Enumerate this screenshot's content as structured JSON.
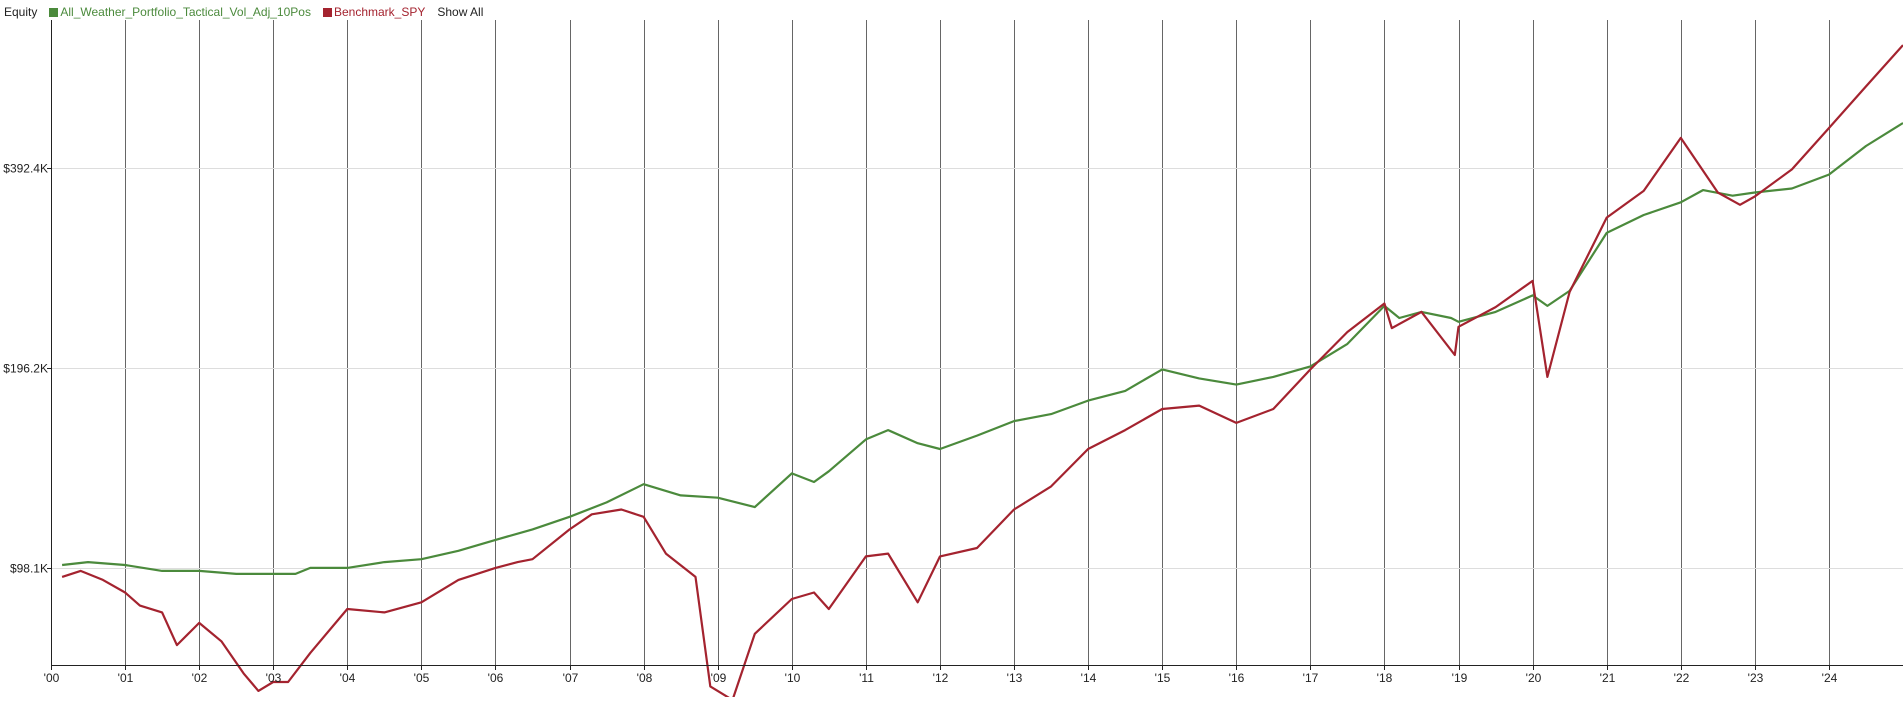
{
  "legend": {
    "title": "Equity",
    "show_all": "Show All"
  },
  "colors": {
    "strategy": "#4b8a3c",
    "benchmark": "#a4232f",
    "grid_h": "#dddddd",
    "grid_v": "#666666",
    "axis": "#222222"
  },
  "chart_data": {
    "type": "line",
    "title": "Equity",
    "xlabel": "",
    "ylabel": "",
    "ylog": true,
    "ylim": [
      70,
      650
    ],
    "xlim": [
      2000.0,
      2025.0
    ],
    "grid": true,
    "legend_position": "top-left",
    "x_ticks": [
      {
        "x": 2000,
        "label": "'00"
      },
      {
        "x": 2001,
        "label": "'01"
      },
      {
        "x": 2002,
        "label": "'02"
      },
      {
        "x": 2003,
        "label": "'03"
      },
      {
        "x": 2004,
        "label": "'04"
      },
      {
        "x": 2005,
        "label": "'05"
      },
      {
        "x": 2006,
        "label": "'06"
      },
      {
        "x": 2007,
        "label": "'07"
      },
      {
        "x": 2008,
        "label": "'08"
      },
      {
        "x": 2009,
        "label": "'09"
      },
      {
        "x": 2010,
        "label": "'10"
      },
      {
        "x": 2011,
        "label": "'11"
      },
      {
        "x": 2012,
        "label": "'12"
      },
      {
        "x": 2013,
        "label": "'13"
      },
      {
        "x": 2014,
        "label": "'14"
      },
      {
        "x": 2015,
        "label": "'15"
      },
      {
        "x": 2016,
        "label": "'16"
      },
      {
        "x": 2017,
        "label": "'17"
      },
      {
        "x": 2018,
        "label": "'18"
      },
      {
        "x": 2019,
        "label": "'19"
      },
      {
        "x": 2020,
        "label": "'20"
      },
      {
        "x": 2021,
        "label": "'21"
      },
      {
        "x": 2022,
        "label": "'22"
      },
      {
        "x": 2023,
        "label": "'23"
      },
      {
        "x": 2024,
        "label": "'24"
      }
    ],
    "y_ticks": [
      {
        "value": 98.1,
        "label": "$98.1K"
      },
      {
        "value": 196.2,
        "label": "$196.2K"
      },
      {
        "value": 392.4,
        "label": "$392.4K"
      }
    ],
    "series": [
      {
        "name": "All_Weather_Portfolio_Tactical_Vol_Adj_10Pos",
        "color": "#4b8a3c",
        "x": [
          2000.15,
          2000.5,
          2001.0,
          2001.5,
          2002.0,
          2002.5,
          2003.0,
          2003.3,
          2003.5,
          2004.0,
          2004.5,
          2005.0,
          2005.5,
          2006.0,
          2006.5,
          2007.0,
          2007.5,
          2008.0,
          2008.5,
          2009.0,
          2009.5,
          2010.0,
          2010.3,
          2010.5,
          2011.0,
          2011.3,
          2011.7,
          2012.0,
          2012.5,
          2013.0,
          2013.5,
          2014.0,
          2014.5,
          2015.0,
          2015.5,
          2016.0,
          2016.5,
          2017.0,
          2017.5,
          2018.0,
          2018.2,
          2018.5,
          2018.9,
          2019.0,
          2019.5,
          2020.0,
          2020.2,
          2020.5,
          2021.0,
          2021.5,
          2022.0,
          2022.3,
          2022.7,
          2023.0,
          2023.5,
          2024.0,
          2024.5,
          2025.0
        ],
        "y": [
          99,
          100,
          99,
          97,
          97,
          96,
          96,
          96,
          98,
          98,
          100,
          101,
          104,
          108,
          112,
          117,
          123,
          131,
          126,
          125,
          121,
          136,
          132,
          137,
          153,
          158,
          151,
          148,
          155,
          163,
          167,
          175,
          181,
          195,
          189,
          185,
          190,
          197,
          213,
          243,
          233,
          238,
          233,
          230,
          238,
          252,
          243,
          256,
          313,
          333,
          348,
          363,
          356,
          360,
          365,
          383,
          423,
          458
        ]
      },
      {
        "name": "Benchmark_SPY",
        "color": "#a4232f",
        "x": [
          2000.15,
          2000.4,
          2000.7,
          2001.0,
          2001.2,
          2001.5,
          2001.7,
          2002.0,
          2002.3,
          2002.6,
          2002.8,
          2003.0,
          2003.2,
          2003.5,
          2004.0,
          2004.5,
          2005.0,
          2005.5,
          2006.0,
          2006.3,
          2006.5,
          2007.0,
          2007.3,
          2007.7,
          2008.0,
          2008.3,
          2008.7,
          2008.9,
          2009.0,
          2009.2,
          2009.5,
          2010.0,
          2010.3,
          2010.5,
          2011.0,
          2011.3,
          2011.7,
          2012.0,
          2012.5,
          2013.0,
          2013.5,
          2014.0,
          2014.5,
          2015.0,
          2015.5,
          2016.0,
          2016.5,
          2017.0,
          2017.5,
          2018.0,
          2018.1,
          2018.5,
          2018.95,
          2019.0,
          2019.5,
          2020.0,
          2020.2,
          2020.5,
          2021.0,
          2021.5,
          2022.0,
          2022.5,
          2022.8,
          2023.0,
          2023.5,
          2024.0,
          2024.5,
          2025.0
        ],
        "y": [
          95,
          97,
          94,
          90,
          86,
          84,
          75,
          81,
          76,
          68,
          64,
          66,
          66,
          73,
          85,
          84,
          87,
          94,
          98,
          100,
          101,
          112,
          118,
          120,
          117,
          103,
          95,
          65,
          64,
          62,
          78,
          88,
          90,
          85,
          102,
          103,
          87,
          102,
          105,
          120,
          130,
          148,
          158,
          170,
          172,
          162,
          170,
          195,
          222,
          245,
          225,
          238,
          205,
          226,
          242,
          265,
          190,
          255,
          330,
          362,
          435,
          360,
          345,
          355,
          390,
          450,
          520,
          600
        ]
      }
    ]
  }
}
